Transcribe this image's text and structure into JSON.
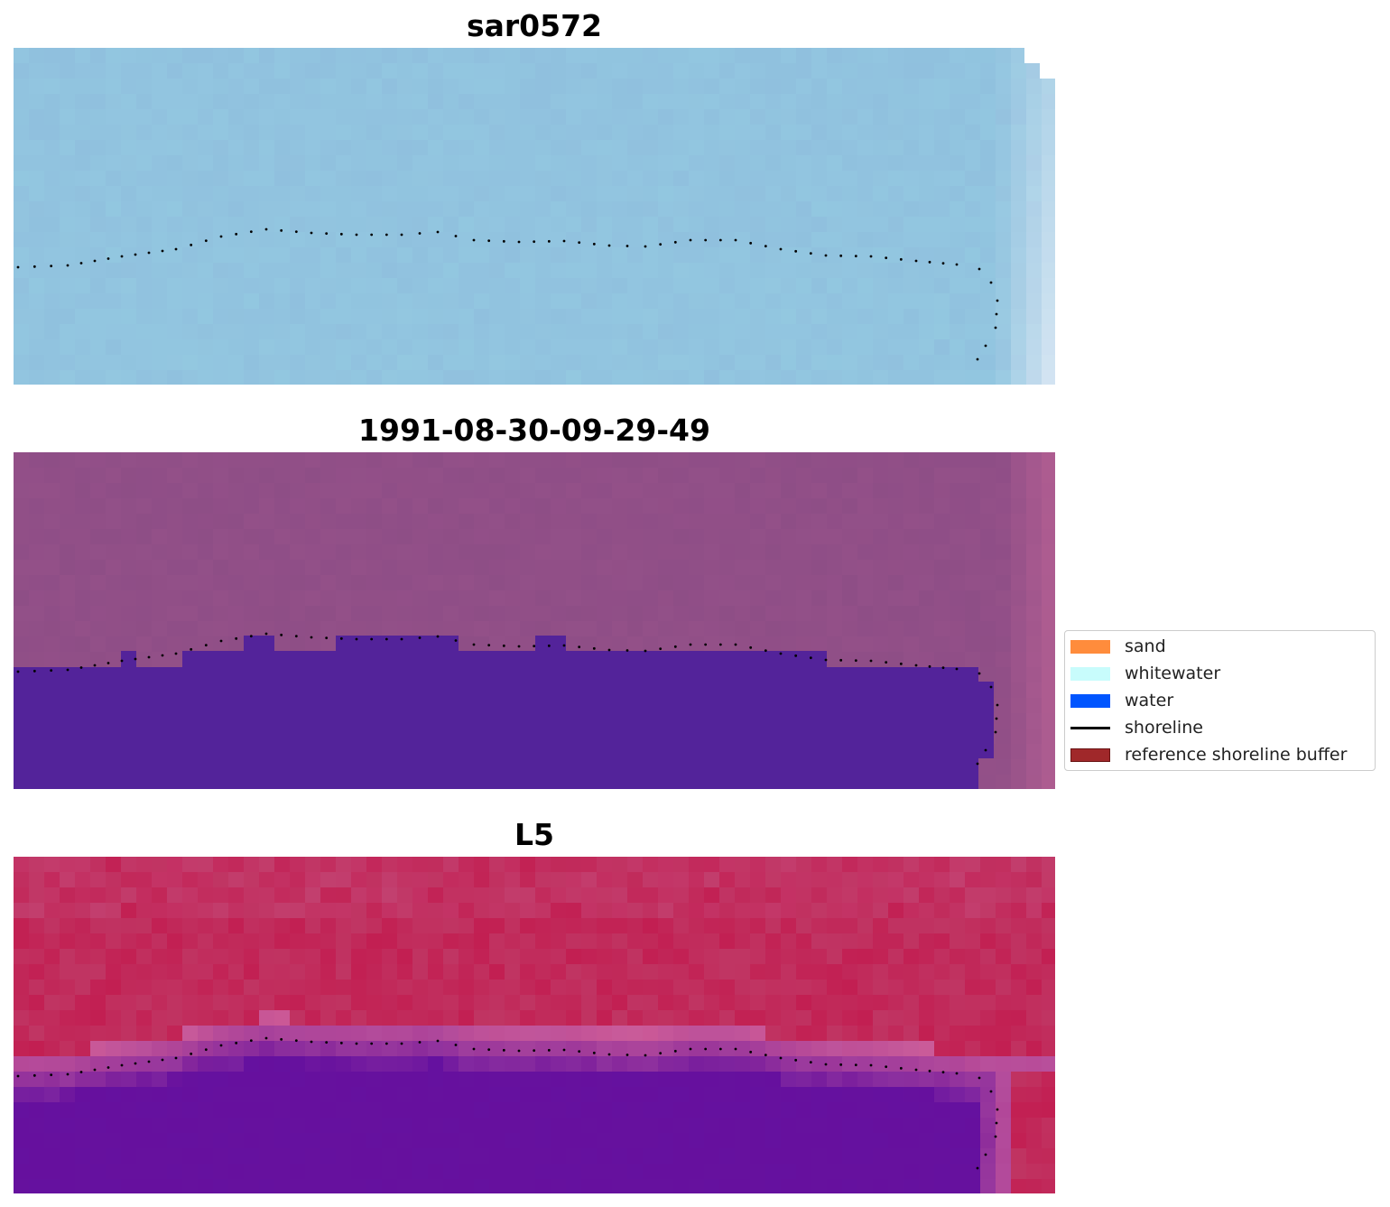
{
  "panels": [
    {
      "id": "sar",
      "title": "sar0572"
    },
    {
      "id": "classified",
      "title": "1991-08-30-09-29-49"
    },
    {
      "id": "l5",
      "title": "L5"
    }
  ],
  "legend": {
    "items": [
      {
        "label": "sand",
        "color": "#ff8c3c"
      },
      {
        "label": "whitewater",
        "color": "#c8fcfc"
      },
      {
        "label": "water",
        "color": "#0055ff"
      },
      {
        "label": "shoreline",
        "color": "#000000"
      },
      {
        "label": "reference shoreline buffer",
        "color": "#a0282a"
      }
    ]
  },
  "colors": {
    "sar_base": "#92c6e0",
    "classified_land": "#935088",
    "classified_water": "#53239a",
    "l5_land": "#c21f52",
    "l5_water": "#66109e",
    "shoreline_dots": "#000000"
  }
}
